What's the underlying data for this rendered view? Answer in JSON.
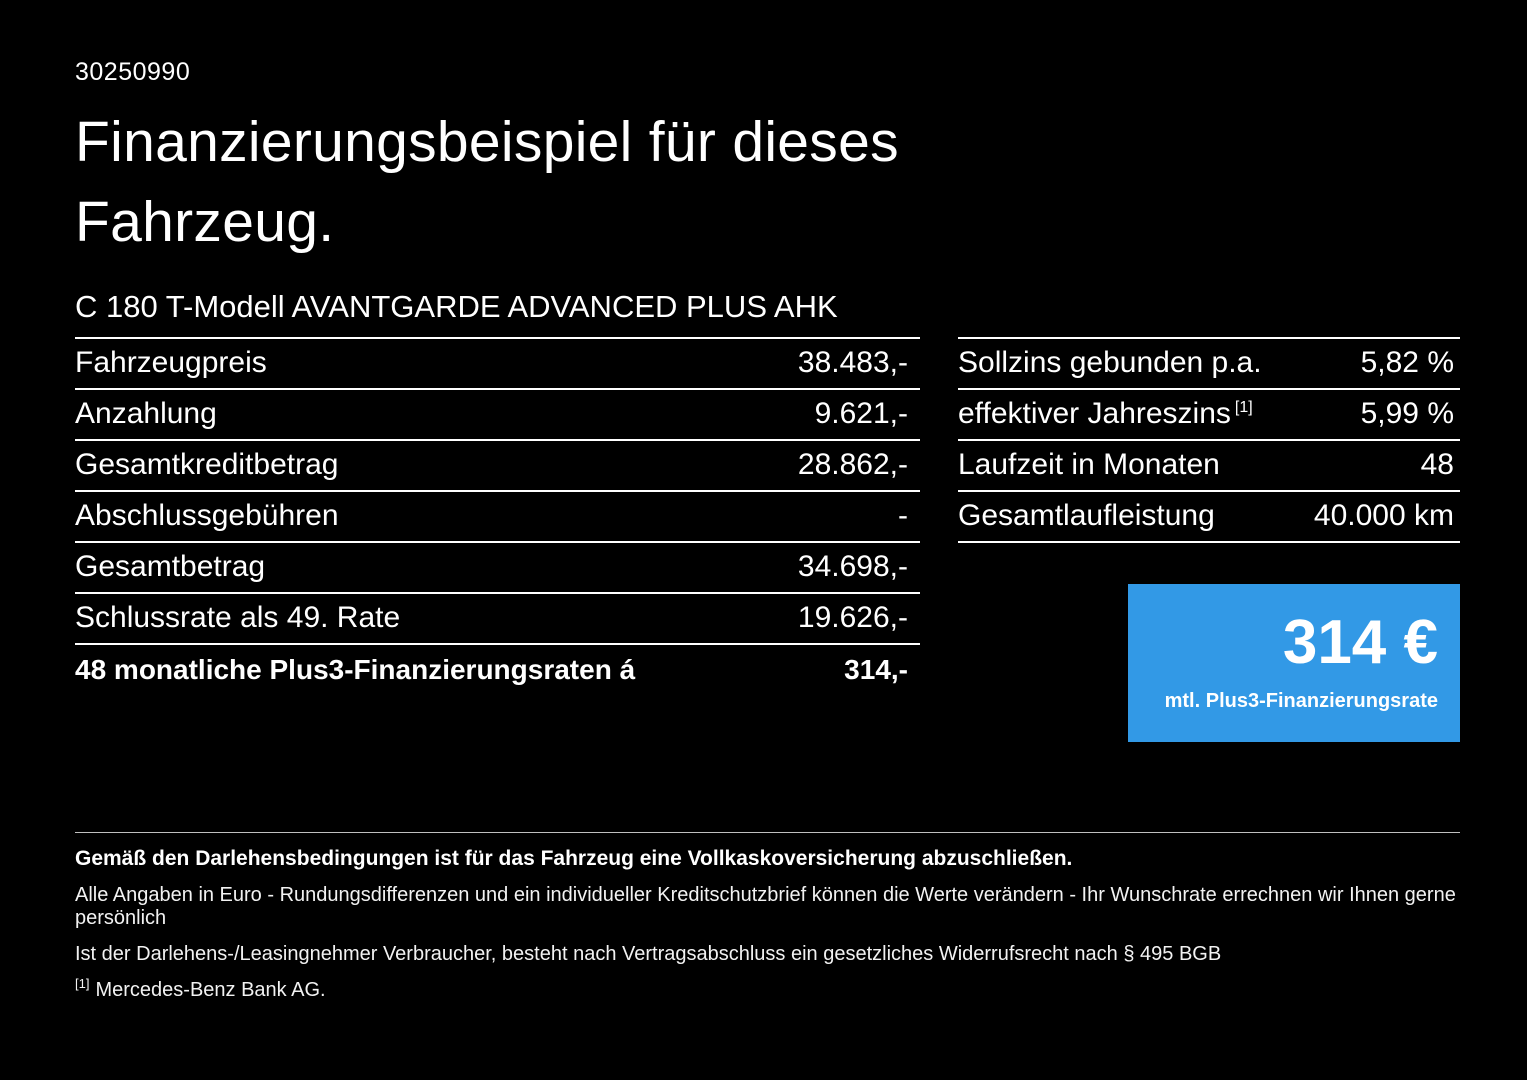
{
  "meta": {
    "id": "30250990"
  },
  "header": {
    "title_line1": "Finanzierungsbeispiel für dieses",
    "title_line2": "Fahrzeug.",
    "vehicle": "C 180 T-Modell AVANTGARDE ADVANCED PLUS AHK"
  },
  "left_table": {
    "rows": [
      {
        "label": "Fahrzeugpreis",
        "value": "38.483,-"
      },
      {
        "label": "Anzahlung",
        "value": "9.621,-"
      },
      {
        "label": "Gesamtkreditbetrag",
        "value": "28.862,-"
      },
      {
        "label": "Abschlussgebühren",
        "value": "-"
      },
      {
        "label": "Gesamtbetrag",
        "value": "34.698,-"
      },
      {
        "label": "Schlussrate als 49. Rate",
        "value": "19.626,-"
      },
      {
        "label": "48 monatliche Plus3-Finanzierungsraten á",
        "value": "314,-"
      }
    ]
  },
  "right_table": {
    "rows": [
      {
        "label": "Sollzins gebunden p.a.",
        "superscript": "",
        "value": "5,82 %"
      },
      {
        "label": "effektiver Jahreszins",
        "superscript": "[1]",
        "value": "5,99 %"
      },
      {
        "label": "Laufzeit in Monaten",
        "superscript": "",
        "value": "48"
      },
      {
        "label": "Gesamtlaufleistung",
        "superscript": "",
        "value": "40.000 km"
      }
    ]
  },
  "rate_box": {
    "amount": "314 €",
    "caption": "mtl. Plus3-Finanzierungsrate",
    "background": "#3299e6"
  },
  "footer": {
    "bold_note": "Gemäß den Darlehensbedingungen ist für das Fahrzeug eine Vollkaskoversicherung abzuschließen.",
    "note1": "Alle Angaben in Euro - Rundungsdifferenzen und ein individueller Kreditschutzbrief können die Werte verändern - Ihr Wunschrate errechnen wir Ihnen gerne persönlich",
    "note2": "Ist der Darlehens-/Leasingnehmer Verbraucher, besteht nach Vertragsabschluss ein gesetzliches Widerrufsrecht nach § 495 BGB",
    "footnote_marker": "[1]",
    "footnote_text": "Mercedes-Benz Bank AG."
  },
  "colors": {
    "background": "#000000",
    "text": "#ffffff",
    "accent_blue": "#3299e6"
  }
}
